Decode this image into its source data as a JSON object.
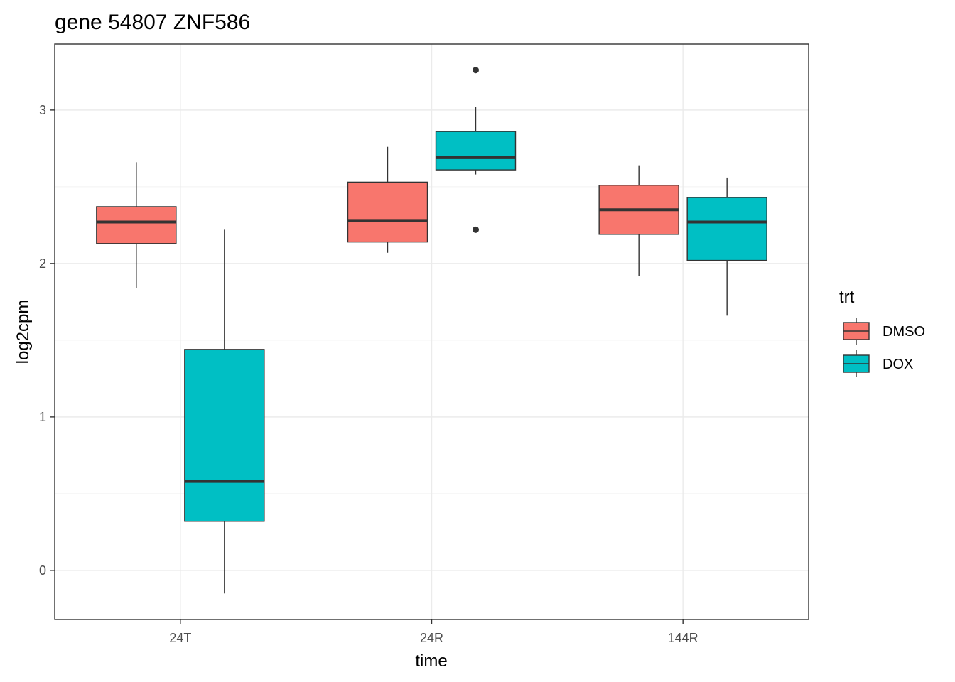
{
  "chart_data": {
    "type": "boxplot",
    "title": "gene 54807 ZNF586",
    "xlabel": "time",
    "ylabel": "log2cpm",
    "categories": [
      "24T",
      "24R",
      "144R"
    ],
    "ylim": [
      -0.32,
      3.43
    ],
    "yticks": [
      0,
      1,
      2,
      3
    ],
    "grid": true,
    "legend": {
      "title": "trt",
      "position": "right",
      "entries": [
        {
          "label": "DMSO",
          "color": "#F8766D"
        },
        {
          "label": "DOX",
          "color": "#00BFC4"
        }
      ]
    },
    "series": [
      {
        "name": "DMSO",
        "color": "#F8766D",
        "boxes": [
          {
            "category": "24T",
            "whisker_low": 1.84,
            "q1": 2.13,
            "median": 2.27,
            "q3": 2.37,
            "whisker_high": 2.66,
            "outliers": []
          },
          {
            "category": "24R",
            "whisker_low": 2.07,
            "q1": 2.14,
            "median": 2.28,
            "q3": 2.53,
            "whisker_high": 2.76,
            "outliers": []
          },
          {
            "category": "144R",
            "whisker_low": 1.92,
            "q1": 2.19,
            "median": 2.35,
            "q3": 2.51,
            "whisker_high": 2.64,
            "outliers": []
          }
        ]
      },
      {
        "name": "DOX",
        "color": "#00BFC4",
        "boxes": [
          {
            "category": "24T",
            "whisker_low": -0.15,
            "q1": 0.32,
            "median": 0.58,
            "q3": 1.44,
            "whisker_high": 2.22,
            "outliers": []
          },
          {
            "category": "24R",
            "whisker_low": 2.58,
            "q1": 2.61,
            "median": 2.69,
            "q3": 2.86,
            "whisker_high": 3.02,
            "outliers": [
              3.26,
              2.22
            ]
          },
          {
            "category": "144R",
            "whisker_low": 1.66,
            "q1": 2.02,
            "median": 2.27,
            "q3": 2.43,
            "whisker_high": 2.56,
            "outliers": []
          }
        ]
      }
    ]
  }
}
